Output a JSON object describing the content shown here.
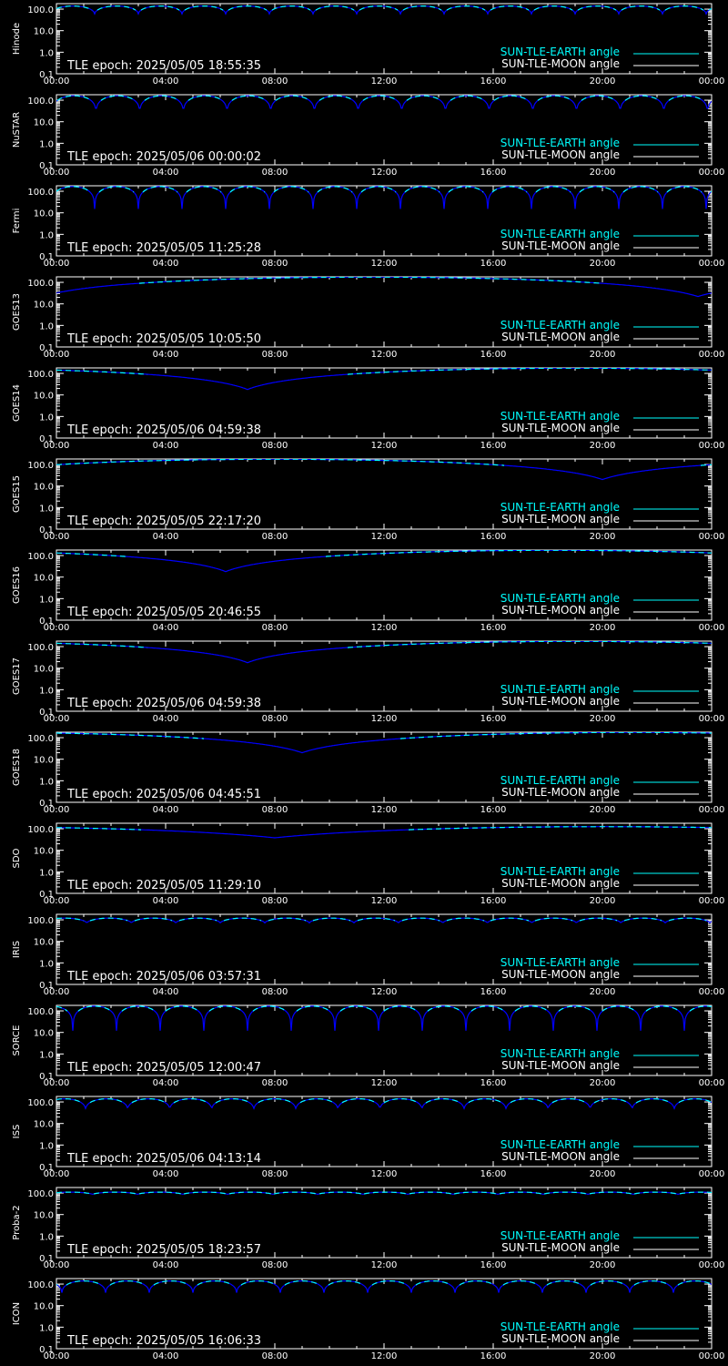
{
  "colors": {
    "background": "#000000",
    "axes": "#ffffff",
    "earth": "#00ffff",
    "moon": "#ffffff",
    "curve": "#0000ff"
  },
  "legend": {
    "earth_label": "SUN-TLE-EARTH angle",
    "moon_label": "SUN-TLE-MOON angle"
  },
  "chart_data": {
    "type": "line",
    "y_scale": "log",
    "ylim": [
      0.1,
      180
    ],
    "y_tick_labels": [
      "100.0",
      "10.0",
      "1.0",
      "0.1"
    ],
    "y_tick_values": [
      100,
      10,
      1,
      0.1
    ],
    "x_tick_labels": [
      "00:00",
      "04:00",
      "08:00",
      "12:00",
      "16:00",
      "20:00",
      "00:00"
    ],
    "x_range_hours": [
      0,
      24
    ],
    "legend_position": "bottom-right",
    "panels": [
      {
        "satellite": "Hinode",
        "epoch": "TLE epoch: 2025/05/05 18:55:35",
        "curve": "periodic",
        "period_h": 1.6,
        "phase_h": 0.6,
        "min_deg": 60,
        "max_deg": 140
      },
      {
        "satellite": "NuSTAR",
        "epoch": "TLE epoch: 2025/05/06 00:00:02",
        "curve": "periodic",
        "period_h": 1.6,
        "phase_h": 0.65,
        "min_deg": 25,
        "max_deg": 160
      },
      {
        "satellite": "Fermi",
        "epoch": "TLE epoch: 2025/05/05 11:25:28",
        "curve": "periodic",
        "period_h": 1.6,
        "phase_h": 0.6,
        "min_deg": 15,
        "max_deg": 165
      },
      {
        "satellite": "GOES13",
        "epoch": "TLE epoch: 2025/05/05 10:05:50",
        "curve": "slow",
        "min_t_h": 23.5,
        "min_deg": 22,
        "max_deg": 175
      },
      {
        "satellite": "GOES14",
        "epoch": "TLE epoch: 2025/05/06 04:59:38",
        "curve": "slow",
        "min_t_h": 7.0,
        "min_deg": 18,
        "max_deg": 175
      },
      {
        "satellite": "GOES15",
        "epoch": "TLE epoch: 2025/05/05 22:17:20",
        "curve": "slow",
        "min_t_h": 20.0,
        "min_deg": 20,
        "max_deg": 175
      },
      {
        "satellite": "GOES16",
        "epoch": "TLE epoch: 2025/05/05 20:46:55",
        "curve": "slow",
        "min_t_h": 6.2,
        "min_deg": 18,
        "max_deg": 175
      },
      {
        "satellite": "GOES17",
        "epoch": "TLE epoch: 2025/05/06 04:59:38",
        "curve": "slow",
        "min_t_h": 7.0,
        "min_deg": 18,
        "max_deg": 175
      },
      {
        "satellite": "GOES18",
        "epoch": "TLE epoch: 2025/05/06 04:45:51",
        "curve": "slow",
        "min_t_h": 9.0,
        "min_deg": 20,
        "max_deg": 175
      },
      {
        "satellite": "SDO",
        "epoch": "TLE epoch: 2025/05/05 11:29:10",
        "curve": "slow",
        "min_t_h": 8.0,
        "min_deg": 38,
        "max_deg": 125
      },
      {
        "satellite": "IRIS",
        "epoch": "TLE epoch: 2025/05/06 03:57:31",
        "curve": "periodic",
        "period_h": 1.63,
        "phase_h": 0.3,
        "min_deg": 70,
        "max_deg": 120
      },
      {
        "satellite": "SORCE",
        "epoch": "TLE epoch: 2025/05/05 12:00:47",
        "curve": "periodic",
        "period_h": 1.6,
        "phase_h": 1.4,
        "min_deg": 12,
        "max_deg": 165
      },
      {
        "satellite": "ISS",
        "epoch": "TLE epoch: 2025/05/06 04:13:14",
        "curve": "periodic",
        "period_h": 1.54,
        "phase_h": 0.3,
        "min_deg": 45,
        "max_deg": 140
      },
      {
        "satellite": "Proba-2",
        "epoch": "TLE epoch: 2025/05/05 18:23:57",
        "curve": "periodic",
        "period_h": 1.65,
        "phase_h": 0.5,
        "min_deg": 85,
        "max_deg": 110
      },
      {
        "satellite": "ICON",
        "epoch": "TLE epoch: 2025/05/05 16:06:33",
        "curve": "periodic",
        "period_h": 1.6,
        "phase_h": 1.0,
        "min_deg": 40,
        "max_deg": 140
      }
    ]
  }
}
